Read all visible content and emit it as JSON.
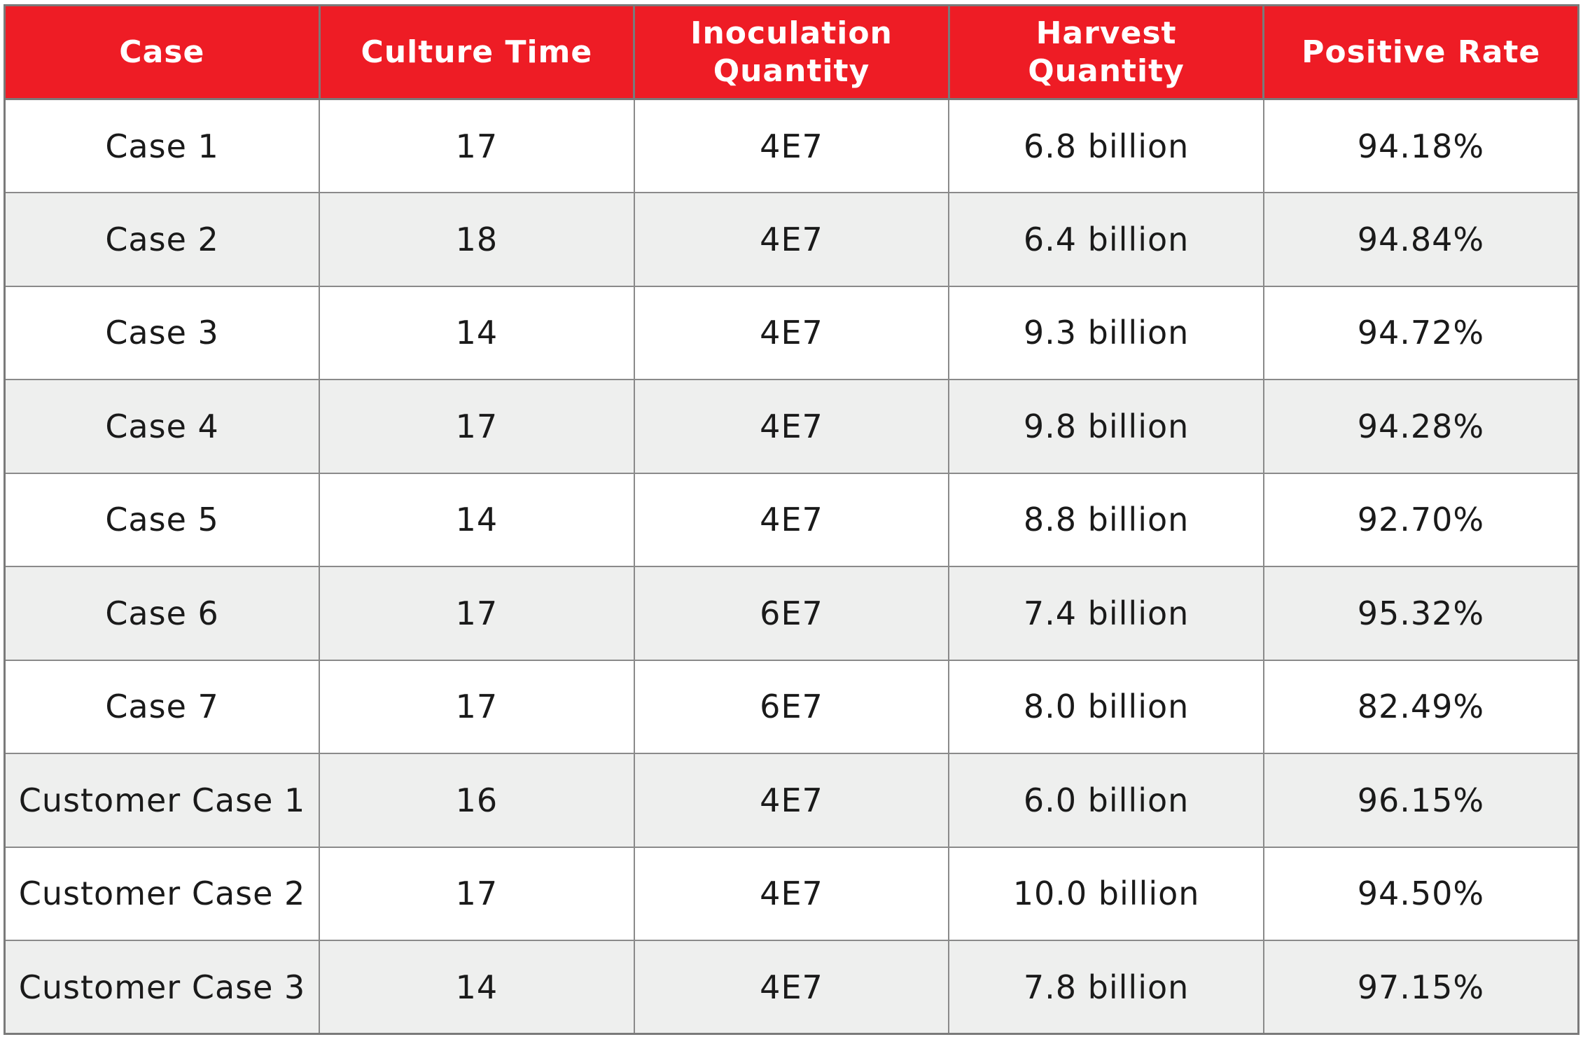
{
  "chart_data": {
    "type": "table",
    "columns": [
      "Case",
      "Culture Time",
      "Inoculation Quantity",
      "Harvest Quantity",
      "Positive Rate"
    ],
    "rows": [
      [
        "Case 1",
        "17",
        "4E7",
        "6.8 billion",
        "94.18%"
      ],
      [
        "Case 2",
        "18",
        "4E7",
        "6.4 billion",
        "94.84%"
      ],
      [
        "Case 3",
        "14",
        "4E7",
        "9.3 billion",
        "94.72%"
      ],
      [
        "Case 4",
        "17",
        "4E7",
        "9.8 billion",
        "94.28%"
      ],
      [
        "Case 5",
        "14",
        "4E7",
        "8.8 billion",
        "92.70%"
      ],
      [
        "Case 6",
        "17",
        "6E7",
        "7.4 billion",
        "95.32%"
      ],
      [
        "Case 7",
        "17",
        "6E7",
        "8.0 billion",
        "82.49%"
      ],
      [
        "Customer Case 1",
        "16",
        "4E7",
        "6.0 billion",
        "96.15%"
      ],
      [
        "Customer Case 2",
        "17",
        "4E7",
        "10.0 billion",
        "94.50%"
      ],
      [
        "Customer Case 3",
        "14",
        "4E7",
        "7.8 billion",
        "97.15%"
      ]
    ]
  },
  "colors": {
    "header_background": "#ee1c25",
    "header_text": "#ffffff",
    "row_alternate": "#eeefee",
    "border": "#7a7a7a"
  }
}
